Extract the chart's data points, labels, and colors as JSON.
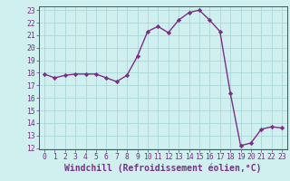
{
  "x": [
    0,
    1,
    2,
    3,
    4,
    5,
    6,
    7,
    8,
    9,
    10,
    11,
    12,
    13,
    14,
    15,
    16,
    17,
    18,
    19,
    20,
    21,
    22,
    23
  ],
  "y": [
    17.9,
    17.6,
    17.8,
    17.9,
    17.9,
    17.9,
    17.6,
    17.3,
    17.8,
    19.3,
    21.3,
    21.7,
    21.2,
    22.2,
    22.8,
    23.0,
    22.2,
    21.3,
    16.4,
    12.2,
    12.4,
    13.5,
    13.7,
    13.6
  ],
  "line_color": "#7b2d8b",
  "marker": "D",
  "marker_size": 2.2,
  "bg_color": "#cff0ee",
  "grid_color": "#aad8d8",
  "xlabel": "Windchill (Refroidissement éolien,°C)",
  "xlabel_color": "#7b2d8b",
  "ylim_min": 12,
  "ylim_max": 23,
  "xlim_min": -0.5,
  "xlim_max": 23.5,
  "yticks": [
    12,
    13,
    14,
    15,
    16,
    17,
    18,
    19,
    20,
    21,
    22,
    23
  ],
  "xticks": [
    0,
    1,
    2,
    3,
    4,
    5,
    6,
    7,
    8,
    9,
    10,
    11,
    12,
    13,
    14,
    15,
    16,
    17,
    18,
    19,
    20,
    21,
    22,
    23
  ],
  "tick_color": "#7b2d8b",
  "tick_fontsize": 5.8,
  "xlabel_fontsize": 7.0,
  "spine_color": "#7b2d8b",
  "line_width": 1.0
}
